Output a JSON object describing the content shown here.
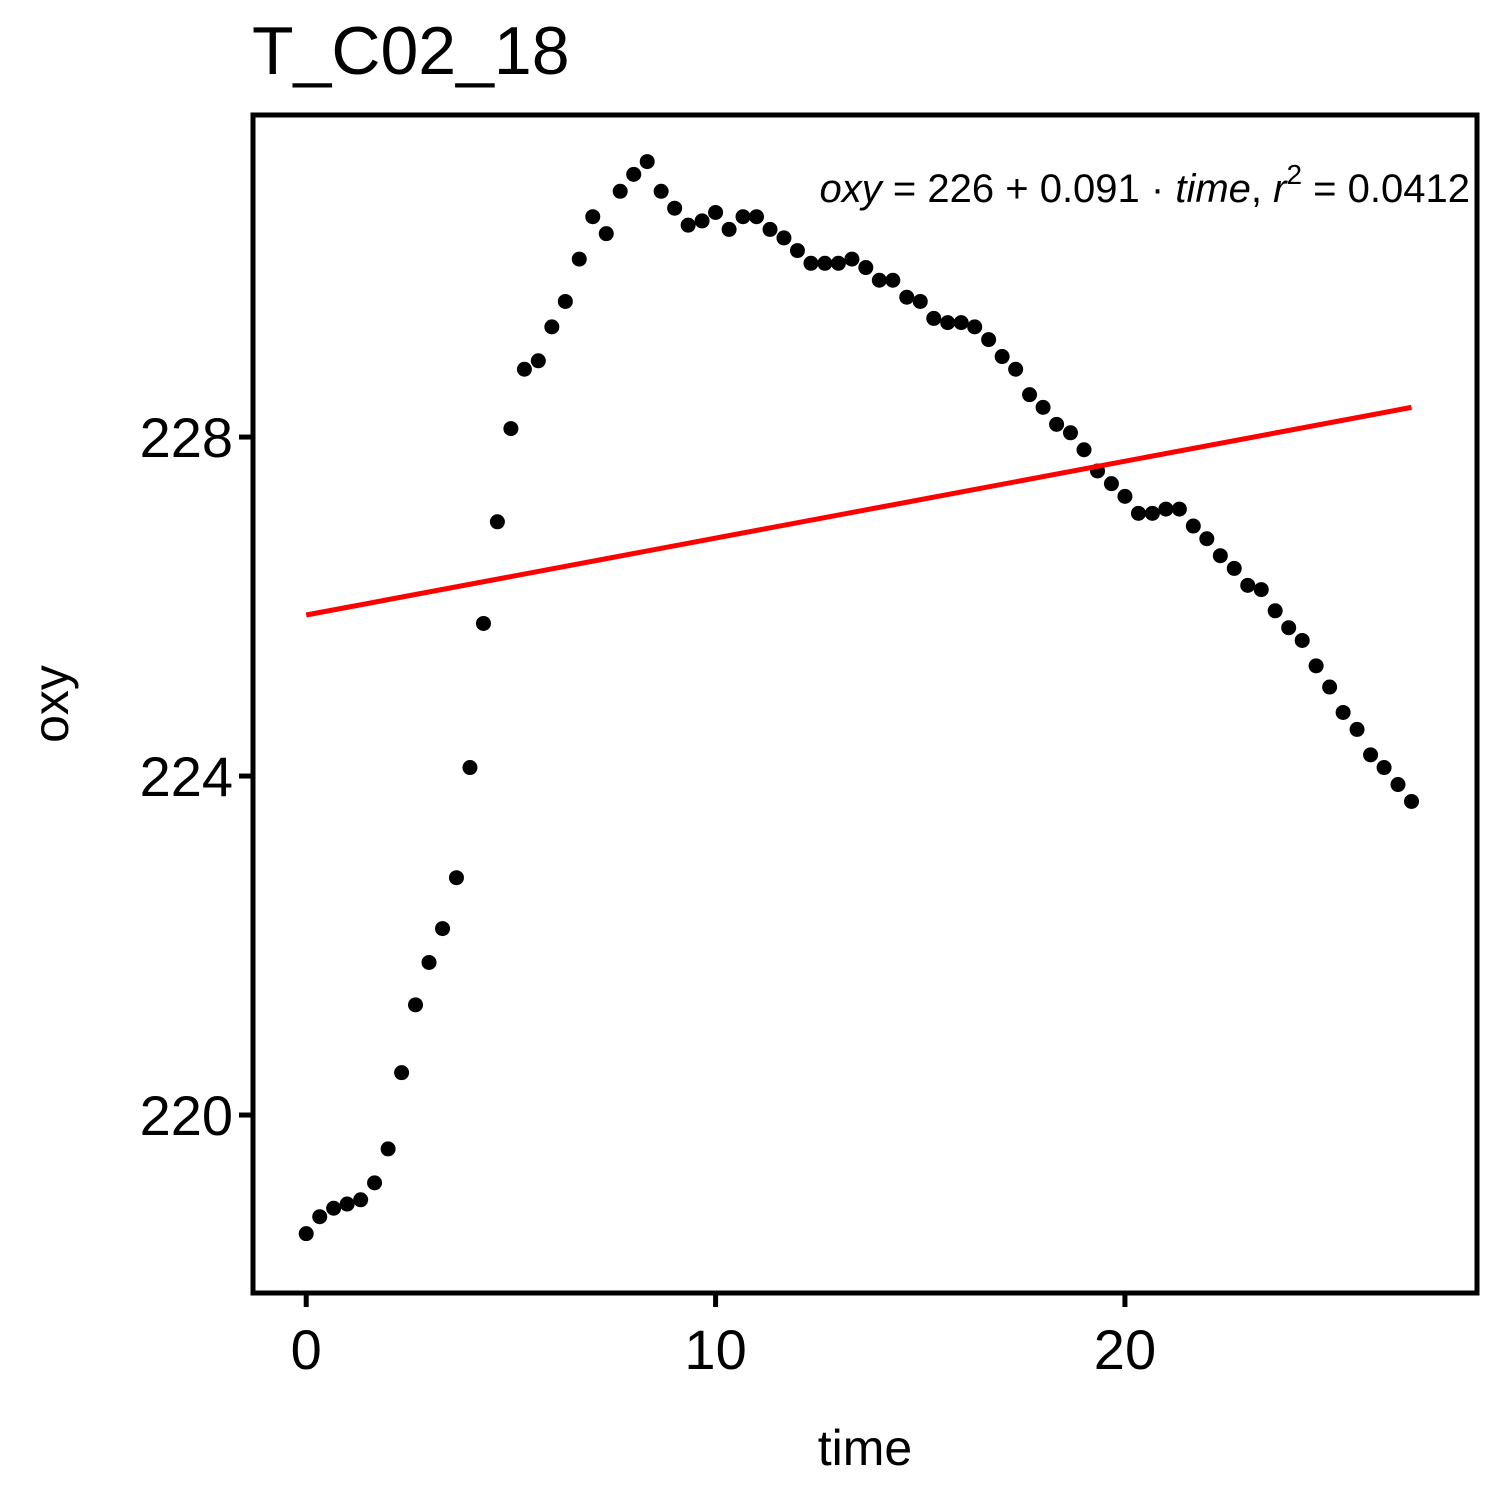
{
  "chart_data": {
    "type": "scatter",
    "title": "T_C02_18",
    "xlabel": "time",
    "ylabel": "oxy",
    "xlim": [
      -1.3,
      28.6
    ],
    "ylim": [
      217.9,
      231.8
    ],
    "x_ticks": [
      0,
      10,
      20
    ],
    "y_ticks": [
      220,
      224,
      228
    ],
    "grid": false,
    "point_color": "#000000",
    "fit_color": "#ff0000",
    "series": [
      {
        "values": [
          [
            0.0,
            218.6
          ],
          [
            0.33,
            218.8
          ],
          [
            0.67,
            218.9
          ],
          [
            1.0,
            218.95
          ],
          [
            1.33,
            219.0
          ],
          [
            1.67,
            219.2
          ],
          [
            2.0,
            219.6
          ],
          [
            2.33,
            220.5
          ],
          [
            2.67,
            221.3
          ],
          [
            3.0,
            221.8
          ],
          [
            3.33,
            222.2
          ],
          [
            3.67,
            222.8
          ],
          [
            4.0,
            224.1
          ],
          [
            4.33,
            225.8
          ],
          [
            4.67,
            227.0
          ],
          [
            5.0,
            228.1
          ],
          [
            5.33,
            228.8
          ],
          [
            5.67,
            228.9
          ],
          [
            6.0,
            229.3
          ],
          [
            6.33,
            229.6
          ],
          [
            6.67,
            230.1
          ],
          [
            7.0,
            230.6
          ],
          [
            7.33,
            230.4
          ],
          [
            7.67,
            230.9
          ],
          [
            8.0,
            231.1
          ],
          [
            8.33,
            231.25
          ],
          [
            8.67,
            230.9
          ],
          [
            9.0,
            230.7
          ],
          [
            9.33,
            230.5
          ],
          [
            9.67,
            230.55
          ],
          [
            10.0,
            230.65
          ],
          [
            10.33,
            230.45
          ],
          [
            10.67,
            230.6
          ],
          [
            11.0,
            230.6
          ],
          [
            11.33,
            230.45
          ],
          [
            11.67,
            230.35
          ],
          [
            12.0,
            230.2
          ],
          [
            12.33,
            230.05
          ],
          [
            12.67,
            230.05
          ],
          [
            13.0,
            230.05
          ],
          [
            13.33,
            230.1
          ],
          [
            13.67,
            230.0
          ],
          [
            14.0,
            229.85
          ],
          [
            14.33,
            229.85
          ],
          [
            14.67,
            229.65
          ],
          [
            15.0,
            229.6
          ],
          [
            15.33,
            229.4
          ],
          [
            15.67,
            229.35
          ],
          [
            16.0,
            229.35
          ],
          [
            16.33,
            229.3
          ],
          [
            16.67,
            229.15
          ],
          [
            17.0,
            228.95
          ],
          [
            17.33,
            228.8
          ],
          [
            17.67,
            228.5
          ],
          [
            18.0,
            228.35
          ],
          [
            18.33,
            228.15
          ],
          [
            18.67,
            228.05
          ],
          [
            19.0,
            227.85
          ],
          [
            19.33,
            227.6
          ],
          [
            19.67,
            227.45
          ],
          [
            20.0,
            227.3
          ],
          [
            20.33,
            227.1
          ],
          [
            20.67,
            227.1
          ],
          [
            21.0,
            227.15
          ],
          [
            21.33,
            227.15
          ],
          [
            21.67,
            226.95
          ],
          [
            22.0,
            226.8
          ],
          [
            22.33,
            226.6
          ],
          [
            22.67,
            226.45
          ],
          [
            23.0,
            226.25
          ],
          [
            23.33,
            226.2
          ],
          [
            23.67,
            225.95
          ],
          [
            24.0,
            225.75
          ],
          [
            24.33,
            225.6
          ],
          [
            24.67,
            225.3
          ],
          [
            25.0,
            225.05
          ],
          [
            25.33,
            224.75
          ],
          [
            25.67,
            224.55
          ],
          [
            26.0,
            224.25
          ],
          [
            26.33,
            224.1
          ],
          [
            26.67,
            223.9
          ],
          [
            27.0,
            223.7
          ]
        ]
      }
    ],
    "fit_line": {
      "x": [
        0,
        27
      ],
      "y": [
        225.9,
        228.35
      ]
    },
    "annotation": {
      "lhs": "oxy",
      "eq": " = 226 + 0.091 · ",
      "var": "time",
      "comma": ",  ",
      "r": "r",
      "sup": "2",
      "rhs": " = 0.0412"
    }
  }
}
